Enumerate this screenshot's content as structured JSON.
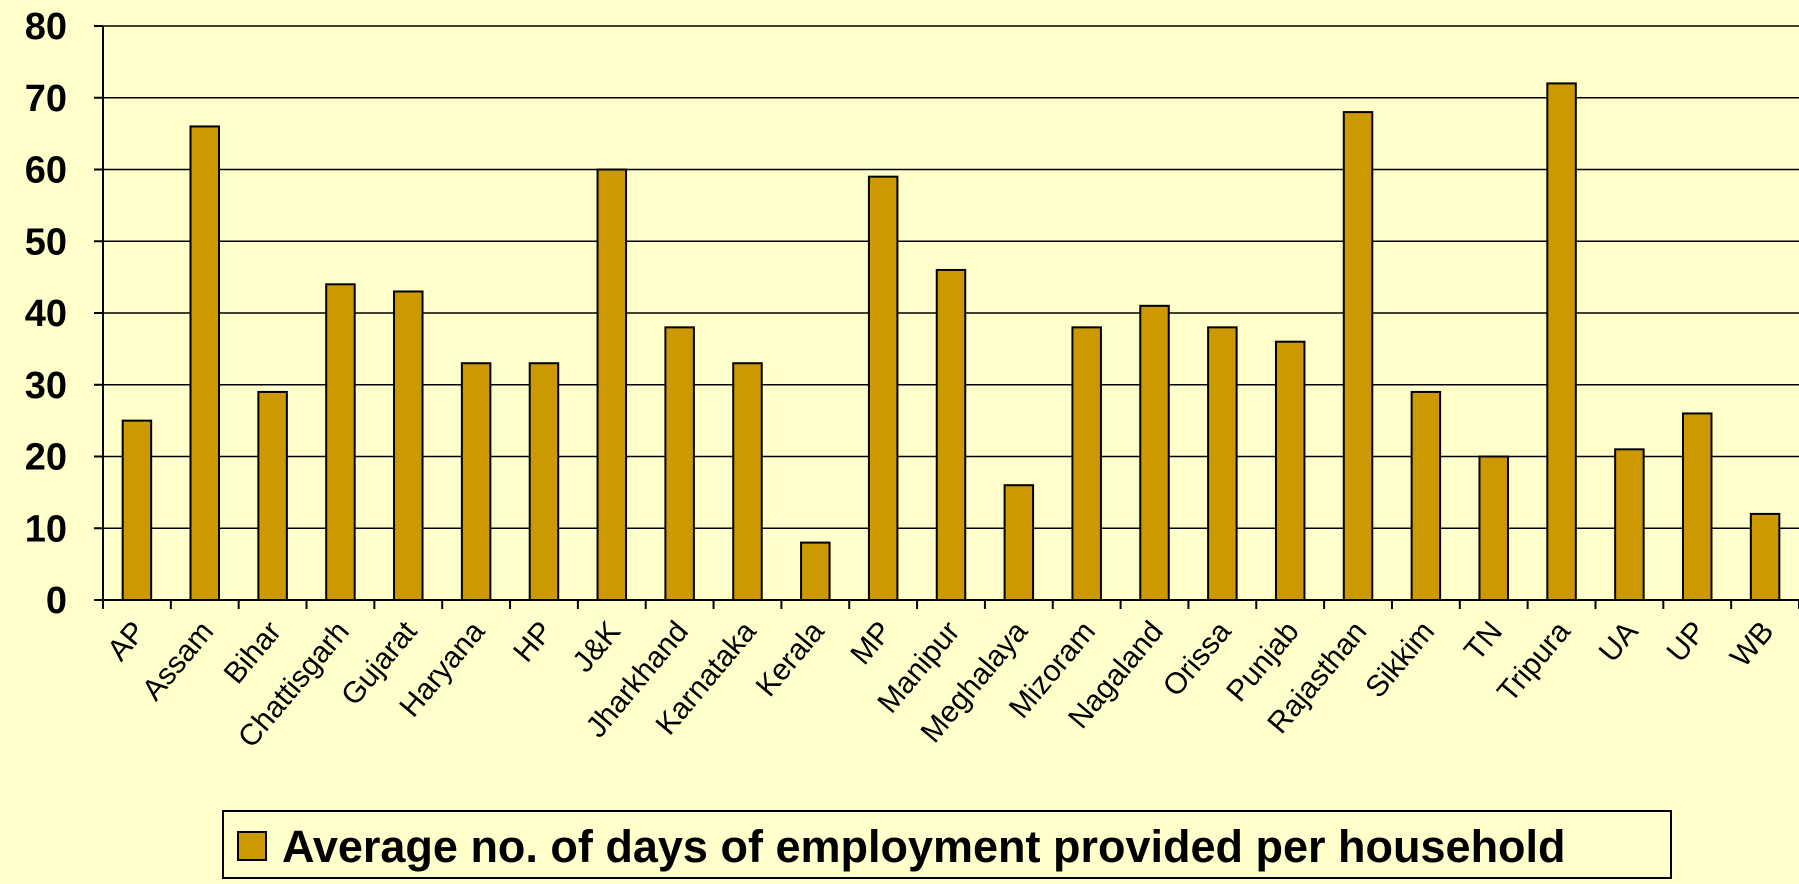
{
  "chart_data": {
    "type": "bar",
    "categories": [
      "AP",
      "Assam",
      "Bihar",
      "Chattisgarh",
      "Gujarat",
      "Haryana",
      "HP",
      "J&K",
      "Jharkhand",
      "Karnataka",
      "Kerala",
      "MP",
      "Manipur",
      "Meghalaya",
      "Mizoram",
      "Nagaland",
      "Orissa",
      "Punjab",
      "Rajasthan",
      "Sikkim",
      "TN",
      "Tripura",
      "UA",
      "UP",
      "WB"
    ],
    "series": [
      {
        "name": "Average no. of days of employment provided per household",
        "values": [
          25,
          66,
          29,
          44,
          43,
          33,
          33,
          60,
          38,
          33,
          8,
          59,
          46,
          16,
          38,
          41,
          38,
          36,
          68,
          29,
          20,
          72,
          21,
          26,
          12
        ]
      }
    ],
    "ylim": [
      0,
      80
    ],
    "yticks": [
      0,
      10,
      20,
      30,
      40,
      50,
      60,
      70,
      80
    ],
    "grid": true,
    "legend_position": "bottom",
    "colors": {
      "background": "#ffffcc",
      "bar": "#cc9900",
      "bar_stroke": "#000000",
      "gridline": "#000000"
    }
  }
}
